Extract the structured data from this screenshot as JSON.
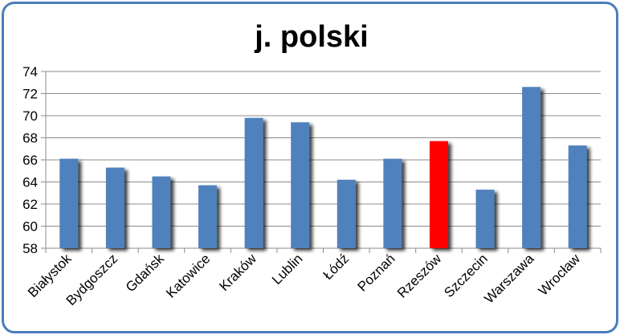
{
  "chart_data": {
    "type": "bar",
    "title": "j. polski",
    "xlabel": "",
    "ylabel": "",
    "ylim": [
      58,
      74
    ],
    "yticks": [
      58,
      60,
      62,
      64,
      66,
      68,
      70,
      72,
      74
    ],
    "grid": true,
    "legend": "none",
    "categories": [
      "Białystok",
      "Bydgoszcz",
      "Gdańsk",
      "Katowice",
      "Kraków",
      "Lublin",
      "Łódź",
      "Poznań",
      "Rzeszów",
      "Szczecin",
      "Warszawa",
      "Wrocław"
    ],
    "values": [
      66.1,
      65.3,
      64.5,
      63.7,
      69.8,
      69.4,
      64.2,
      66.1,
      67.7,
      63.3,
      72.6,
      67.3
    ],
    "colors": {
      "default_bar": "#4f81bd",
      "highlight_bar": "#ff0000",
      "highlight_category": "Rzeszów",
      "frame": "#4a7ebb"
    }
  }
}
